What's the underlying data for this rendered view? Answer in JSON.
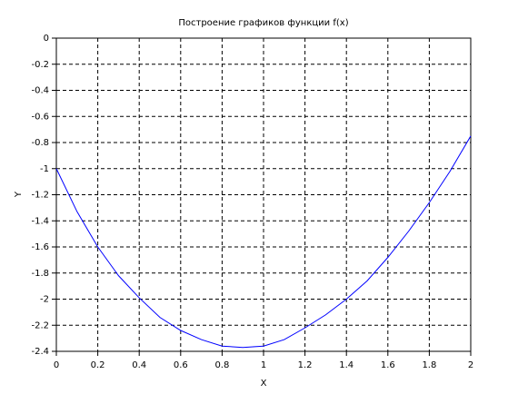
{
  "chart_data": {
    "type": "line",
    "title": "Построение графиков функции f(x)",
    "x_label": "X",
    "y_label": "Y",
    "x": [
      0,
      0.1,
      0.2,
      0.3,
      0.4,
      0.5,
      0.6,
      0.7,
      0.8,
      0.9,
      1.0,
      1.1,
      1.2,
      1.3,
      1.4,
      1.5,
      1.6,
      1.7,
      1.8,
      1.9,
      2.0
    ],
    "series": [
      {
        "name": "f(x)",
        "color": "#0000ff",
        "values": [
          -1,
          -1.33,
          -1.6,
          -1.82,
          -1.99,
          -2.14,
          -2.24,
          -2.31,
          -2.36,
          -2.37,
          -2.36,
          -2.31,
          -2.22,
          -2.12,
          -2.0,
          -1.86,
          -1.68,
          -1.48,
          -1.26,
          -1.02,
          -0.75
        ]
      }
    ],
    "xlim": [
      0,
      2
    ],
    "ylim": [
      -2.4,
      0
    ],
    "xticks": [
      0,
      0.2,
      0.4,
      0.6,
      0.8,
      1,
      1.2,
      1.4,
      1.6,
      1.8,
      2
    ],
    "yticks": [
      0,
      -0.2,
      -0.4,
      -0.6,
      -0.8,
      -1,
      -1.2,
      -1.4,
      -1.6,
      -1.8,
      -2,
      -2.2,
      -2.4
    ],
    "grid": true
  }
}
